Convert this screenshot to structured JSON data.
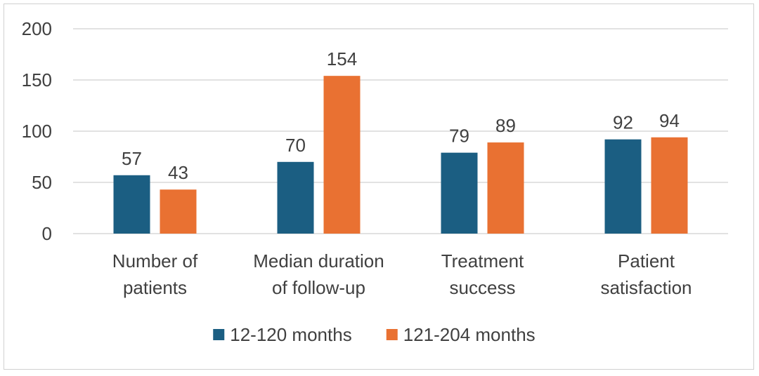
{
  "chart_data": {
    "type": "bar",
    "title": "",
    "xlabel": "",
    "ylabel": "",
    "ylim": [
      0,
      200
    ],
    "yticks": [
      0,
      50,
      100,
      150,
      200
    ],
    "grid": true,
    "legend_position": "bottom",
    "categories": [
      [
        "Number of",
        "patients"
      ],
      [
        "Median duration",
        "of follow-up"
      ],
      [
        "Treatment",
        "success"
      ],
      [
        "Patient",
        "satisfaction"
      ]
    ],
    "series": [
      {
        "name": "12-120 months",
        "color": "#1b5e82",
        "values": [
          57,
          70,
          79,
          92
        ]
      },
      {
        "name": "121-204 months",
        "color": "#e97132",
        "values": [
          43,
          154,
          89,
          94
        ]
      }
    ]
  }
}
